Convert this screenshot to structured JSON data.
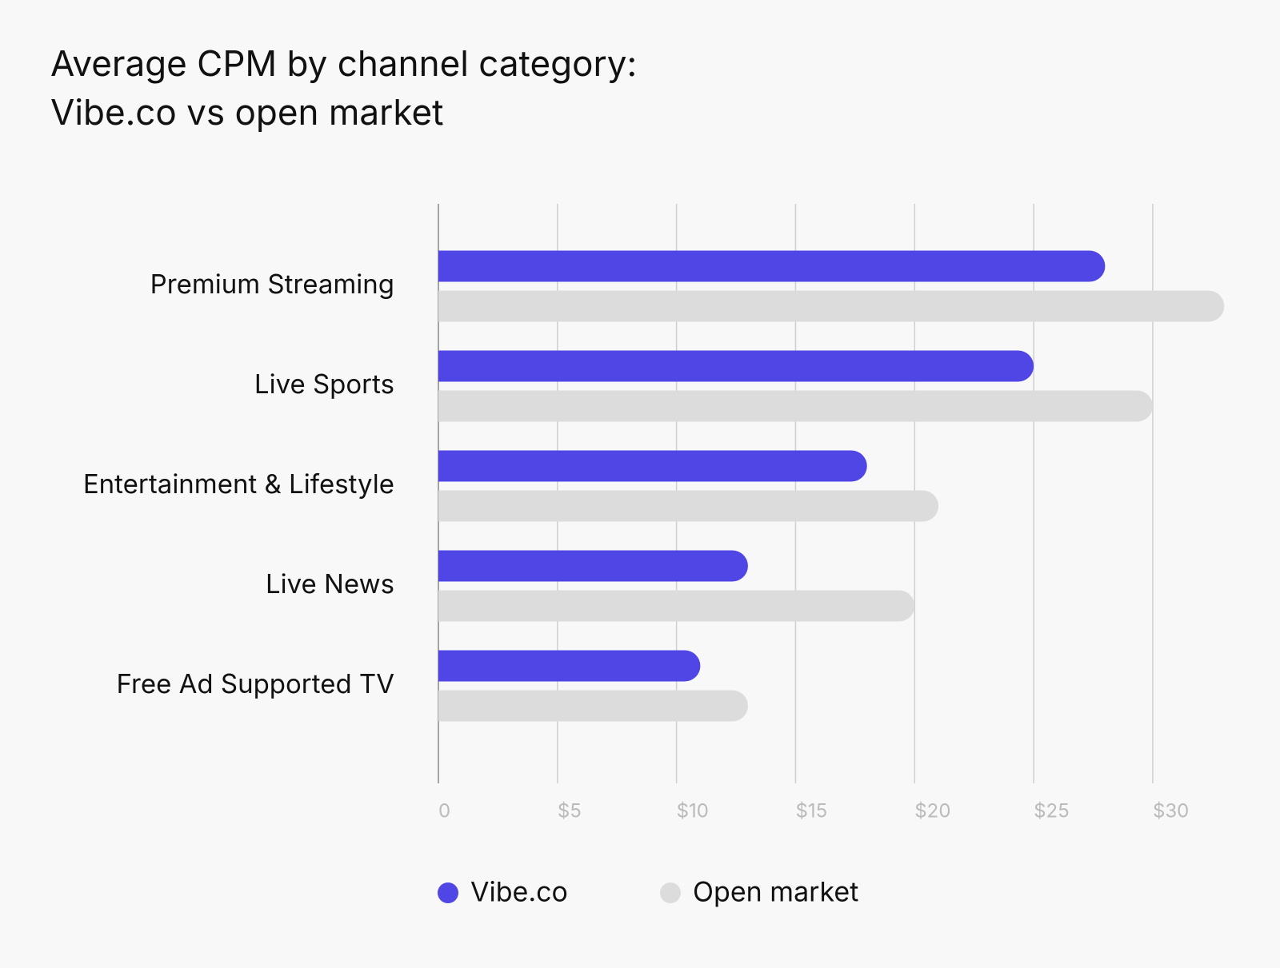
{
  "chart_data": {
    "type": "bar",
    "orientation": "horizontal",
    "title": [
      "Average CPM by channel category:",
      "Vibe.co vs open market"
    ],
    "categories": [
      "Premium Streaming",
      "Live Sports",
      "Entertainment & Lifestyle",
      "Live News",
      "Free Ad Supported TV"
    ],
    "series": [
      {
        "name": "Vibe.co",
        "color": "#4f46e5",
        "values": [
          28,
          25,
          18,
          13,
          11
        ]
      },
      {
        "name": "Open market",
        "color": "#dcdcdc",
        "values": [
          33,
          30,
          21,
          20,
          13
        ]
      }
    ],
    "xlim": [
      0,
      34
    ],
    "xticks": [
      0,
      {
        "value": 5,
        "label": "$5"
      },
      {
        "value": 10,
        "label": "$10"
      },
      {
        "value": 15,
        "label": "$15"
      },
      {
        "value": 20,
        "label": "$20"
      },
      {
        "value": 25,
        "label": "$25"
      },
      {
        "value": 30,
        "label": "$30"
      }
    ],
    "grid": true,
    "legend": "bottom"
  }
}
